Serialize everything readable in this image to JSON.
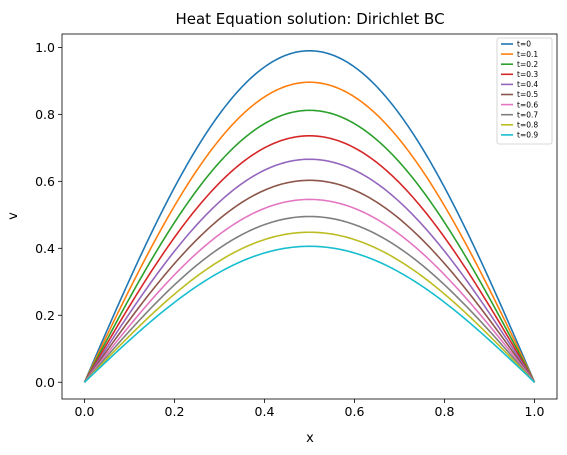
{
  "chart_data": {
    "type": "line",
    "title": "Heat Equation solution: Dirichlet BC",
    "xlabel": "x",
    "ylabel": "v",
    "xlim": [
      -0.05,
      1.05
    ],
    "ylim": [
      -0.05,
      1.04
    ],
    "xticks": [
      "0.0",
      "0.2",
      "0.4",
      "0.6",
      "0.8",
      "1.0"
    ],
    "yticks": [
      "0.0",
      "0.2",
      "0.4",
      "0.6",
      "0.8",
      "1.0"
    ],
    "grid": false,
    "legend_position": "top-right",
    "x": [
      0.0,
      0.1,
      0.2,
      0.3,
      0.4,
      0.5,
      0.6,
      0.7,
      0.8,
      0.9,
      1.0
    ],
    "series": [
      {
        "name": "t=0",
        "color": "#1f77b4",
        "peak": 0.99
      },
      {
        "name": "t=0.1",
        "color": "#ff7f0e",
        "peak": 0.896
      },
      {
        "name": "t=0.2",
        "color": "#2ca02c",
        "peak": 0.812
      },
      {
        "name": "t=0.3",
        "color": "#d62728",
        "peak": 0.736
      },
      {
        "name": "t=0.4",
        "color": "#9467bd",
        "peak": 0.666
      },
      {
        "name": "t=0.5",
        "color": "#8c564b",
        "peak": 0.603
      },
      {
        "name": "t=0.6",
        "color": "#e377c2",
        "peak": 0.546
      },
      {
        "name": "t=0.7",
        "color": "#7f7f7f",
        "peak": 0.495
      },
      {
        "name": "t=0.8",
        "color": "#bcbd22",
        "peak": 0.448
      },
      {
        "name": "t=0.9",
        "color": "#17becf",
        "peak": 0.406
      }
    ]
  }
}
